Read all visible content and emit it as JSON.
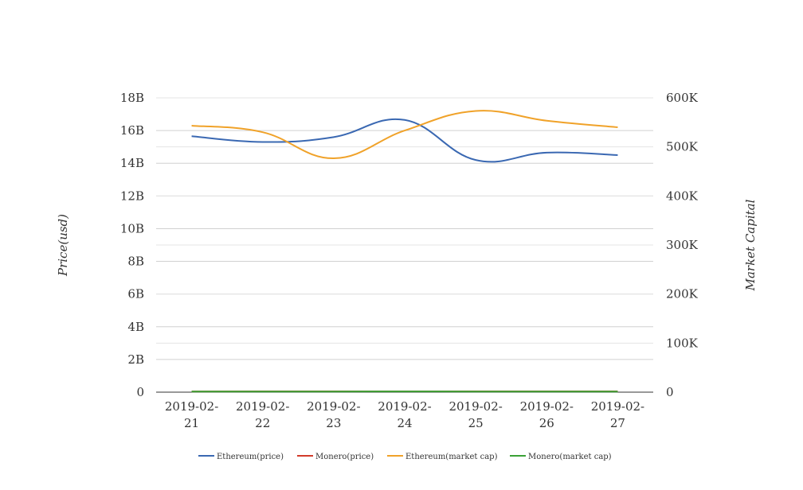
{
  "chart_data": {
    "type": "line",
    "categories": [
      "2019-02-21",
      "2019-02-22",
      "2019-02-23",
      "2019-02-24",
      "2019-02-25",
      "2019-02-26",
      "2019-02-27"
    ],
    "category_lines": [
      [
        "2019-02-",
        "21"
      ],
      [
        "2019-02-",
        "22"
      ],
      [
        "2019-02-",
        "23"
      ],
      [
        "2019-02-",
        "24"
      ],
      [
        "2019-02-",
        "25"
      ],
      [
        "2019-02-",
        "26"
      ],
      [
        "2019-02-",
        "27"
      ]
    ],
    "ylabel": "Price(usd)",
    "y2label": "Market Capital",
    "ylim": [
      0,
      18000000000
    ],
    "y2lim": [
      0,
      600000
    ],
    "y_ticks": [
      "0",
      "2B",
      "4B",
      "6B",
      "8B",
      "10B",
      "12B",
      "14B",
      "16B",
      "18B"
    ],
    "y2_ticks": [
      "0",
      "100K",
      "200K",
      "300K",
      "400K",
      "500K",
      "600K"
    ],
    "grid": true,
    "legend_position": "bottom",
    "series": [
      {
        "name": "Ethereum(price)",
        "axis": "left",
        "color": "#3a68b2",
        "values": [
          15650000000,
          15300000000,
          15600000000,
          16650000000,
          14200000000,
          14650000000,
          14500000000
        ]
      },
      {
        "name": "Monero(price)",
        "axis": "left",
        "color": "#d23b2a",
        "values": [
          45000000,
          46000000,
          48000000,
          50000000,
          47000000,
          46000000,
          46000000
        ]
      },
      {
        "name": "Ethereum(market cap)",
        "axis": "left",
        "color": "#f0a229",
        "values": [
          16300000000,
          15900000000,
          14300000000,
          16000000000,
          17200000000,
          16600000000,
          16200000000
        ]
      },
      {
        "name": "Monero(market cap)",
        "axis": "right",
        "color": "#3aa136",
        "values": [
          1200,
          1250,
          1300,
          1350,
          1300,
          1250,
          1250
        ]
      }
    ]
  }
}
